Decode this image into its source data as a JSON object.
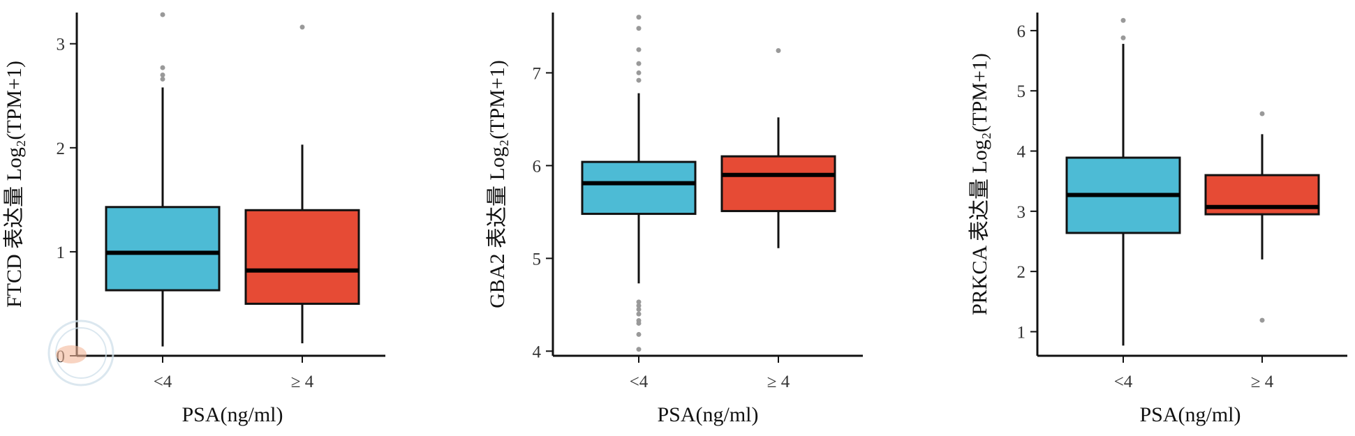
{
  "chart_data": [
    {
      "type": "box",
      "ylabel": "FTCD 表达量 Log₂(TPM+1)",
      "xlabel": "PSA(ng/ml)",
      "categories": [
        "<4",
        "≥ 4"
      ],
      "ylim": [
        0,
        3.3
      ],
      "yticks": [
        0,
        1,
        2,
        3
      ],
      "boxes": [
        {
          "q1": 0.63,
          "median": 0.99,
          "q3": 1.43,
          "whisker_low": 0.09,
          "whisker_high": 2.58,
          "outliers": [
            2.66,
            2.7,
            2.77,
            3.28
          ]
        },
        {
          "q1": 0.5,
          "median": 0.82,
          "q3": 1.4,
          "whisker_low": 0.12,
          "whisker_high": 2.03,
          "outliers": [
            3.16
          ]
        }
      ]
    },
    {
      "type": "box",
      "ylabel": "GBA2 表达量 Log₂(TPM+1)",
      "xlabel": "PSA(ng/ml)",
      "categories": [
        "<4",
        "≥ 4"
      ],
      "ylim": [
        3.95,
        7.65
      ],
      "yticks": [
        4,
        5,
        6,
        7
      ],
      "boxes": [
        {
          "q1": 5.48,
          "median": 5.81,
          "q3": 6.04,
          "whisker_low": 4.73,
          "whisker_high": 6.78,
          "outliers": [
            4.02,
            4.18,
            4.3,
            4.33,
            4.4,
            4.45,
            4.49,
            4.53,
            6.92,
            7.0,
            7.1,
            7.25,
            7.48,
            7.6
          ]
        },
        {
          "q1": 5.51,
          "median": 5.9,
          "q3": 6.1,
          "whisker_low": 5.11,
          "whisker_high": 6.52,
          "outliers": [
            7.24
          ]
        }
      ]
    },
    {
      "type": "box",
      "ylabel": "PRKCA 表达量 Log₂(TPM+1)",
      "xlabel": "PSA(ng/ml)",
      "categories": [
        "<4",
        "≥ 4"
      ],
      "ylim": [
        0.6,
        6.3
      ],
      "yticks": [
        1,
        2,
        3,
        4,
        5,
        6
      ],
      "boxes": [
        {
          "q1": 2.64,
          "median": 3.27,
          "q3": 3.89,
          "whisker_low": 0.77,
          "whisker_high": 5.78,
          "outliers": [
            5.88,
            6.17
          ]
        },
        {
          "q1": 2.95,
          "median": 3.07,
          "q3": 3.6,
          "whisker_low": 2.2,
          "whisker_high": 4.28,
          "outliers": [
            1.19,
            4.62
          ]
        }
      ]
    }
  ],
  "colors": {
    "group_lt4": "#4DBBD5",
    "group_ge4": "#E64B35",
    "outlier": "#999999",
    "axis": "#111111",
    "watermark": "#cfe0ea",
    "watermark_accent": "#f3b79a"
  },
  "watermark_icon": "journal-seal-icon"
}
